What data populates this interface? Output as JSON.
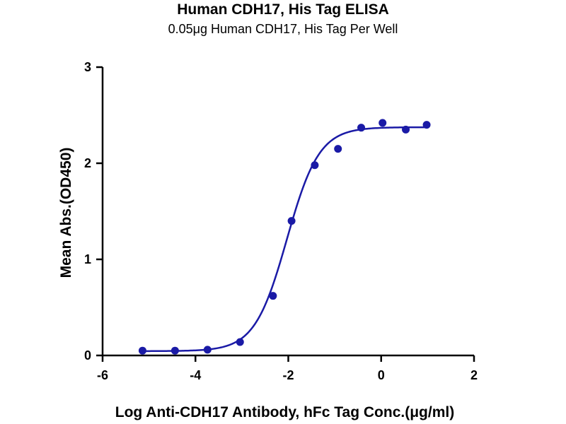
{
  "chart_data": {
    "type": "scatter",
    "title": "Human CDH17, His Tag ELISA",
    "subtitle": "0.05μg Human CDH17, His Tag Per Well",
    "xlabel": "Log Anti-CDH17 Antibody, hFc Tag Conc.(μg/ml)",
    "ylabel": "Mean Abs.(OD450)",
    "xlim": [
      -6,
      2
    ],
    "ylim": [
      0,
      3
    ],
    "xticks": [
      "-6",
      "-4",
      "-2",
      "0",
      "2"
    ],
    "yticks": [
      "0",
      "1",
      "2",
      "3"
    ],
    "grid": false,
    "colors": {
      "series": "#1a1aa6",
      "axis": "#000000"
    },
    "series": [
      {
        "type": "scatter",
        "points": [
          {
            "x": -5.14,
            "y": 0.05
          },
          {
            "x": -4.44,
            "y": 0.05
          },
          {
            "x": -3.74,
            "y": 0.06
          },
          {
            "x": -3.04,
            "y": 0.14
          },
          {
            "x": -2.33,
            "y": 0.62
          },
          {
            "x": -1.93,
            "y": 1.4
          },
          {
            "x": -1.43,
            "y": 1.98
          },
          {
            "x": -0.93,
            "y": 2.15
          },
          {
            "x": -0.43,
            "y": 2.37
          },
          {
            "x": 0.03,
            "y": 2.42
          },
          {
            "x": 0.53,
            "y": 2.35
          },
          {
            "x": 0.98,
            "y": 2.4
          }
        ]
      },
      {
        "type": "line",
        "fit": "4PL",
        "params": {
          "bottom": 0.045,
          "top": 2.375,
          "logEC50": -2.03,
          "hill": 1.25
        },
        "x_range": [
          -5.14,
          0.98
        ]
      }
    ]
  }
}
